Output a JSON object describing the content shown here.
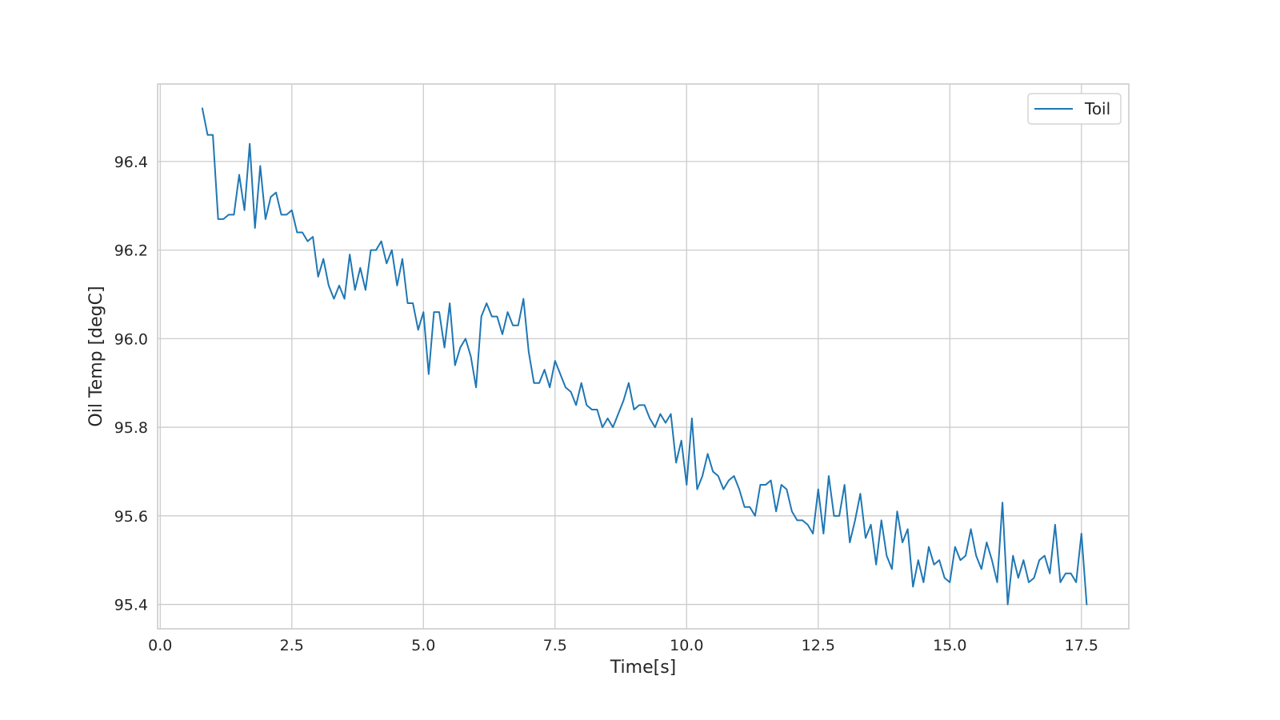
{
  "chart_data": {
    "type": "line",
    "title": "",
    "xlabel": "Time[s]",
    "ylabel": "Oil Temp [degC]",
    "xlim": [
      -0.05,
      18.4
    ],
    "ylim": [
      95.345,
      96.575
    ],
    "xticks": [
      0.0,
      2.5,
      5.0,
      7.5,
      10.0,
      12.5,
      15.0,
      17.5
    ],
    "xtick_labels": [
      "0.0",
      "2.5",
      "5.0",
      "7.5",
      "10.0",
      "12.5",
      "15.0",
      "17.5"
    ],
    "yticks": [
      95.4,
      95.6,
      95.8,
      96.0,
      96.2,
      96.4
    ],
    "ytick_labels": [
      "95.4",
      "95.6",
      "95.8",
      "96.0",
      "96.2",
      "96.4"
    ],
    "grid": true,
    "legend_position": "top-right",
    "colors": {
      "series": "#1f77b4",
      "grid": "#cccccc",
      "text": "#262626",
      "background": "#ffffff"
    },
    "series": [
      {
        "name": "Toil",
        "color": "#1f77b4",
        "x": [
          0.8,
          0.9,
          1.0,
          1.1,
          1.2,
          1.3,
          1.4,
          1.5,
          1.6,
          1.7,
          1.8,
          1.9,
          2.0,
          2.1,
          2.2,
          2.3,
          2.4,
          2.5,
          2.6,
          2.7,
          2.8,
          2.9,
          3.0,
          3.1,
          3.2,
          3.3,
          3.4,
          3.5,
          3.6,
          3.7,
          3.8,
          3.9,
          4.0,
          4.1,
          4.2,
          4.3,
          4.4,
          4.5,
          4.6,
          4.7,
          4.8,
          4.9,
          5.0,
          5.1,
          5.2,
          5.3,
          5.4,
          5.5,
          5.6,
          5.7,
          5.8,
          5.9,
          6.0,
          6.1,
          6.2,
          6.3,
          6.4,
          6.5,
          6.6,
          6.7,
          6.8,
          6.9,
          7.0,
          7.1,
          7.2,
          7.3,
          7.4,
          7.5,
          7.6,
          7.7,
          7.8,
          7.9,
          8.0,
          8.1,
          8.2,
          8.3,
          8.4,
          8.5,
          8.6,
          8.7,
          8.8,
          8.9,
          9.0,
          9.1,
          9.2,
          9.3,
          9.4,
          9.5,
          9.6,
          9.7,
          9.8,
          9.9,
          10.0,
          10.1,
          10.2,
          10.3,
          10.4,
          10.5,
          10.6,
          10.7,
          10.8,
          10.9,
          11.0,
          11.1,
          11.2,
          11.3,
          11.4,
          11.5,
          11.6,
          11.7,
          11.8,
          11.9,
          12.0,
          12.1,
          12.2,
          12.3,
          12.4,
          12.5,
          12.6,
          12.7,
          12.8,
          12.9,
          13.0,
          13.1,
          13.2,
          13.3,
          13.4,
          13.5,
          13.6,
          13.7,
          13.8,
          13.9,
          14.0,
          14.1,
          14.2,
          14.3,
          14.4,
          14.5,
          14.6,
          14.7,
          14.8,
          14.9,
          15.0,
          15.1,
          15.2,
          15.3,
          15.4,
          15.5,
          15.6,
          15.7,
          15.8,
          15.9,
          16.0,
          16.1,
          16.2,
          16.3,
          16.4,
          16.5,
          16.6,
          16.7,
          16.8,
          16.9,
          17.0,
          17.1,
          17.2,
          17.3,
          17.4,
          17.5,
          17.6
        ],
        "y": [
          96.52,
          96.46,
          96.46,
          96.27,
          96.27,
          96.28,
          96.28,
          96.37,
          96.29,
          96.44,
          96.25,
          96.39,
          96.27,
          96.32,
          96.33,
          96.28,
          96.28,
          96.29,
          96.24,
          96.24,
          96.22,
          96.23,
          96.14,
          96.18,
          96.12,
          96.09,
          96.12,
          96.09,
          96.19,
          96.11,
          96.16,
          96.11,
          96.2,
          96.2,
          96.22,
          96.17,
          96.2,
          96.12,
          96.18,
          96.08,
          96.08,
          96.02,
          96.06,
          95.92,
          96.06,
          96.06,
          95.98,
          96.08,
          95.94,
          95.98,
          96.0,
          95.96,
          95.89,
          96.05,
          96.08,
          96.05,
          96.05,
          96.01,
          96.06,
          96.03,
          96.03,
          96.09,
          95.97,
          95.9,
          95.9,
          95.93,
          95.89,
          95.95,
          95.92,
          95.89,
          95.88,
          95.85,
          95.9,
          95.85,
          95.84,
          95.84,
          95.8,
          95.82,
          95.8,
          95.83,
          95.86,
          95.9,
          95.84,
          95.85,
          95.85,
          95.82,
          95.8,
          95.83,
          95.81,
          95.83,
          95.72,
          95.77,
          95.67,
          95.82,
          95.66,
          95.69,
          95.74,
          95.7,
          95.69,
          95.66,
          95.68,
          95.69,
          95.66,
          95.62,
          95.62,
          95.6,
          95.67,
          95.67,
          95.68,
          95.61,
          95.67,
          95.66,
          95.61,
          95.59,
          95.59,
          95.58,
          95.56,
          95.66,
          95.56,
          95.69,
          95.6,
          95.6,
          95.67,
          95.54,
          95.59,
          95.65,
          95.55,
          95.58,
          95.49,
          95.59,
          95.51,
          95.48,
          95.61,
          95.54,
          95.57,
          95.44,
          95.5,
          95.45,
          95.53,
          95.49,
          95.5,
          95.46,
          95.45,
          95.53,
          95.5,
          95.51,
          95.57,
          95.51,
          95.48,
          95.54,
          95.5,
          95.45,
          95.63,
          95.4,
          95.51,
          95.46,
          95.5,
          95.45,
          95.46,
          95.5,
          95.51,
          95.47,
          95.58,
          95.45,
          95.47,
          95.47,
          95.45,
          95.56,
          95.4
        ]
      }
    ]
  }
}
